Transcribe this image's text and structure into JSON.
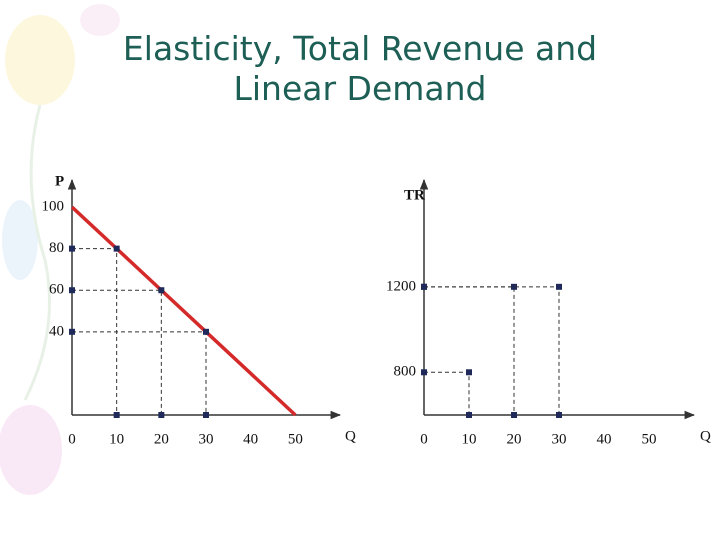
{
  "title": "Elasticity, Total Revenue and Linear Demand",
  "chart_data": [
    {
      "type": "line",
      "x": [
        0,
        10,
        20,
        30,
        50
      ],
      "values": [
        100,
        80,
        60,
        40,
        0
      ],
      "color": "#d42a2a",
      "y_label": "P",
      "x_label": "Q",
      "xlim": [
        0,
        60
      ],
      "ylim": [
        0,
        113
      ],
      "xticks": [
        0,
        10,
        20,
        30,
        40,
        50
      ],
      "yticks": [
        100,
        80,
        60,
        40
      ]
    },
    {
      "type": "scatter",
      "x": [
        10,
        20,
        30
      ],
      "values": [
        800,
        1200,
        1200
      ],
      "color": "#1f2a5a",
      "y_label": "TR",
      "x_label": "Q",
      "xlim": [
        0,
        60
      ],
      "ylim": [
        600,
        1700
      ],
      "xticks": [
        0,
        10,
        20,
        30,
        40,
        50
      ],
      "yticks": [
        1200,
        800
      ]
    }
  ]
}
